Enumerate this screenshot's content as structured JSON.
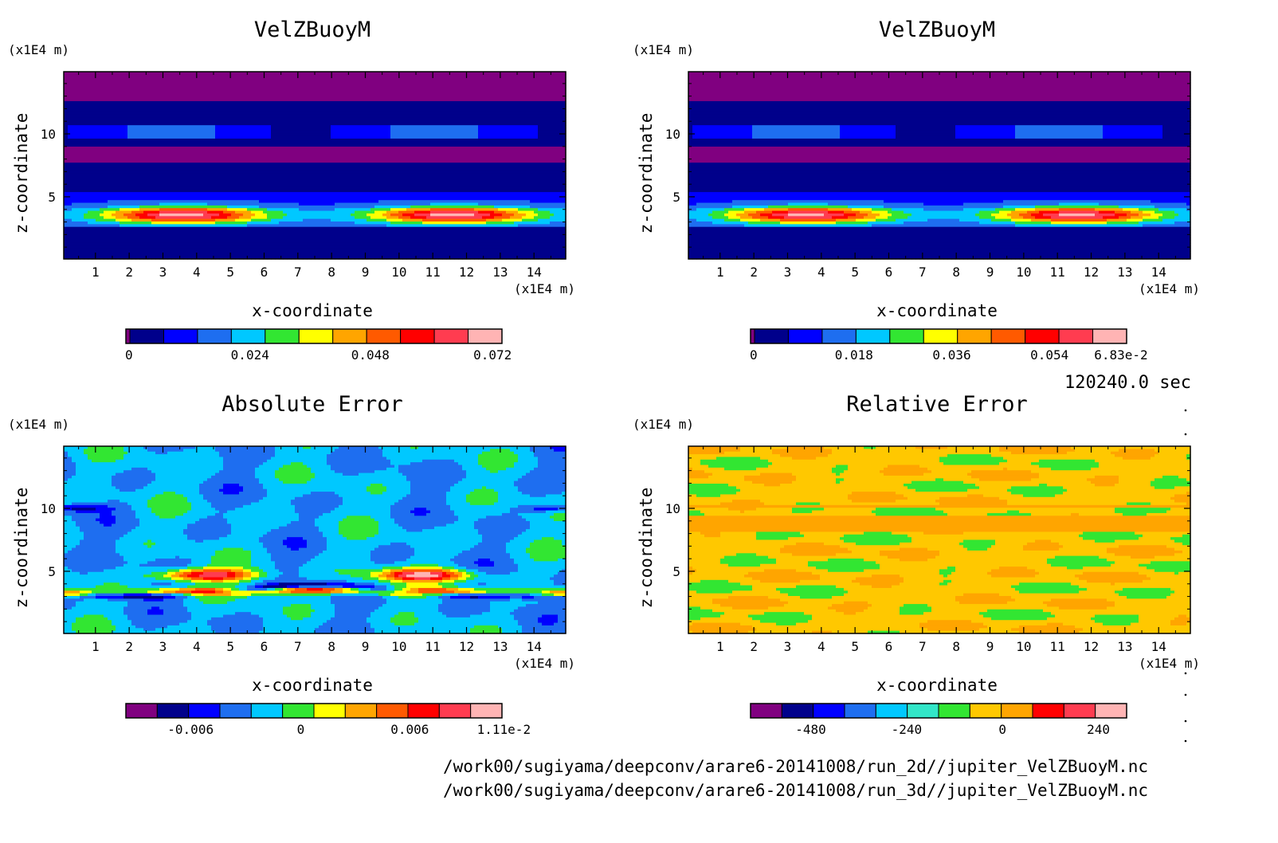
{
  "footer": {
    "time_label": "120240.0 sec",
    "path_2d": "/work00/sugiyama/deepconv/arare6-20141008/run_2d//jupiter_VelZBuoyM.nc",
    "path_3d": "/work00/sugiyama/deepconv/arare6-20141008/run_3d//jupiter_VelZBuoyM.nc"
  },
  "chart_data": [
    {
      "type": "heatmap",
      "title": "VelZBuoyM",
      "xlabel": "x-coordinate",
      "ylabel": "z-coordinate",
      "x_unit": "(x1E4 m)",
      "y_unit": "(x1E4 m)",
      "x_ticks": [
        "1",
        "2",
        "3",
        "4",
        "5",
        "6",
        "7",
        "8",
        "9",
        "10",
        "11",
        "12",
        "13",
        "14"
      ],
      "y_ticks": [
        "5",
        "10"
      ],
      "xlim": [
        0.06,
        14.94
      ],
      "ylim": [
        0.06,
        14.94
      ],
      "colorbar": {
        "colors": [
          "#800080",
          "#00008b",
          "#0000ff",
          "#1e6ef0",
          "#00c8ff",
          "#32e632",
          "#ffff00",
          "#ffa500",
          "#ff5a00",
          "#ff0000",
          "#ff3c50",
          "#ffb4b4"
        ],
        "ticks": [
          "0",
          "0.024",
          "0.048",
          "0.072"
        ]
      },
      "pattern": "horizontal bands, two lobes of maxima near z=3.5 centered at x=3.5 and x=11.5, max ~0.072"
    },
    {
      "type": "heatmap",
      "title": "VelZBuoyM",
      "xlabel": "x-coordinate",
      "ylabel": "z-coordinate",
      "x_unit": "(x1E4 m)",
      "y_unit": "(x1E4 m)",
      "x_ticks": [
        "1",
        "2",
        "3",
        "4",
        "5",
        "6",
        "7",
        "8",
        "9",
        "10",
        "11",
        "12",
        "13",
        "14"
      ],
      "y_ticks": [
        "5",
        "10"
      ],
      "xlim": [
        0.06,
        14.94
      ],
      "ylim": [
        0.06,
        14.94
      ],
      "colorbar": {
        "colors": [
          "#800080",
          "#00008b",
          "#0000ff",
          "#1e6ef0",
          "#00c8ff",
          "#32e632",
          "#ffff00",
          "#ffa500",
          "#ff5a00",
          "#ff0000",
          "#ff3c50",
          "#ffb4b4"
        ],
        "ticks": [
          "0",
          "0.018",
          "0.036",
          "0.054",
          "6.83e-2"
        ]
      },
      "pattern": "horizontal bands, two lobes of maxima near z=3.5 centered at x=3.5 and x=11.5, max ~6.83e-2"
    },
    {
      "type": "heatmap",
      "title": "Absolute Error",
      "xlabel": "x-coordinate",
      "ylabel": "z-coordinate",
      "x_unit": "(x1E4 m)",
      "y_unit": "(x1E4 m)",
      "x_ticks": [
        "1",
        "2",
        "3",
        "4",
        "5",
        "6",
        "7",
        "8",
        "9",
        "10",
        "11",
        "12",
        "13",
        "14"
      ],
      "y_ticks": [
        "5",
        "10"
      ],
      "xlim": [
        0.06,
        14.94
      ],
      "ylim": [
        0.06,
        14.94
      ],
      "colorbar": {
        "colors": [
          "#800080",
          "#00008b",
          "#0000ff",
          "#1e6ef0",
          "#00c8ff",
          "#32e632",
          "#ffff00",
          "#ffa500",
          "#ff5a00",
          "#ff0000",
          "#ff3c50",
          "#ffb4b4"
        ],
        "ticks": [
          "-0.006",
          "0",
          "0.006",
          "1.11e-2"
        ]
      },
      "pattern": "mostly cyan/green near zero; positive (red) lobes near z=3.5 at x=4 and x=11, negative (blue) band around z=3.2"
    },
    {
      "type": "heatmap",
      "title": "Relative Error",
      "xlabel": "x-coordinate",
      "ylabel": "z-coordinate",
      "x_unit": "(x1E4 m)",
      "y_unit": "(x1E4 m)",
      "x_ticks": [
        "1",
        "2",
        "3",
        "4",
        "5",
        "6",
        "7",
        "8",
        "9",
        "10",
        "11",
        "12",
        "13",
        "14"
      ],
      "y_ticks": [
        "5",
        "10"
      ],
      "xlim": [
        0.06,
        14.94
      ],
      "ylim": [
        0.06,
        14.94
      ],
      "colorbar": {
        "colors": [
          "#800080",
          "#00008b",
          "#0000ff",
          "#1e6ef0",
          "#00c8ff",
          "#32e6c8",
          "#32e632",
          "#ffc800",
          "#ffa500",
          "#ff0000",
          "#ff3c50",
          "#ffb4b4"
        ],
        "ticks": [
          "-480",
          "-240",
          "0",
          "240"
        ]
      },
      "pattern": "mostly orange/gold (values near 0) with patchy structure"
    }
  ]
}
